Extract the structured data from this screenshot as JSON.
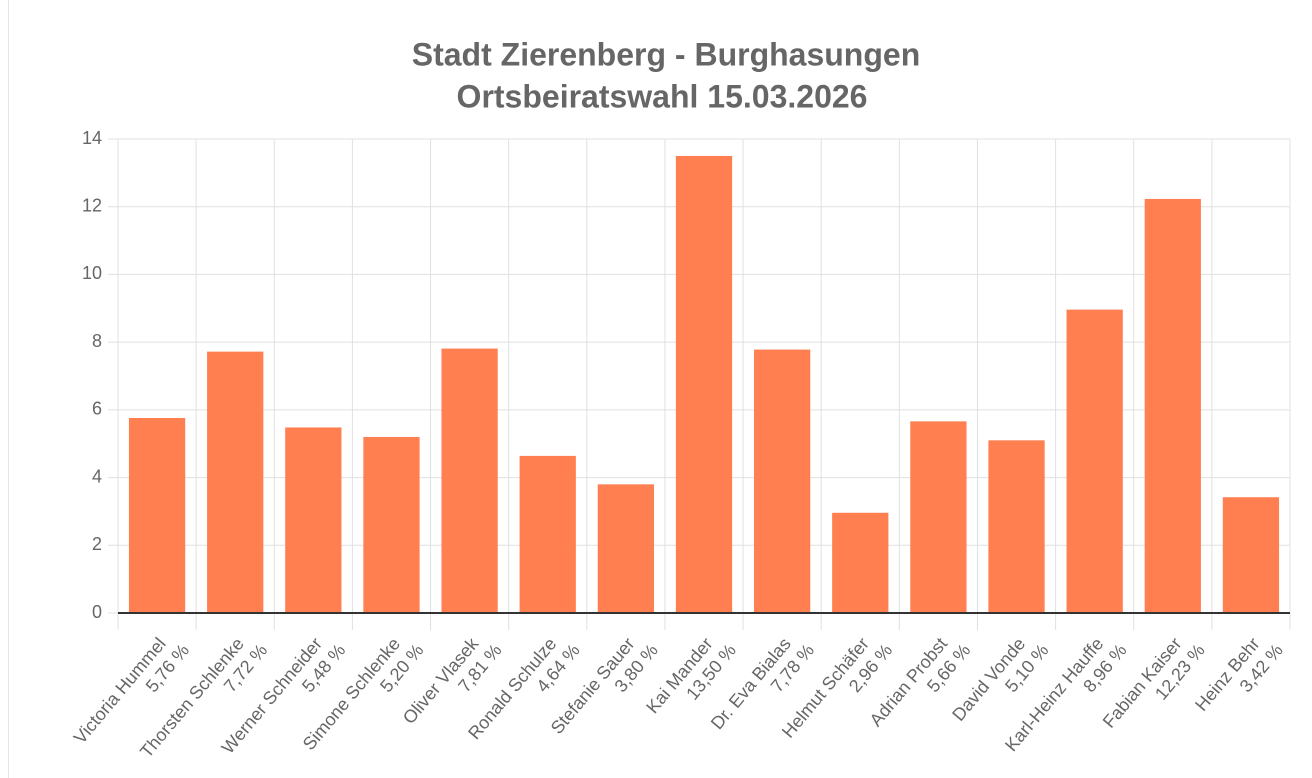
{
  "chart_data": {
    "type": "bar",
    "title": [
      "Stadt Zierenberg - Burghasungen",
      "Ortsbeiratswahl 15.03.2026"
    ],
    "categories": [
      "Victoria Hummel",
      "Thorsten Schlenke",
      "Werner Schneider",
      "Simone Schlenke",
      "Oliver Vlasek",
      "Ronald Schulze",
      "Stefanie Sauer",
      "Kai Mander",
      "Dr. Eva Bialas",
      "Helmut Schäfer",
      "Adrian Probst",
      "David Vonde",
      "Karl-Heinz Hauffe",
      "Fabian Kaiser",
      "Heinz Behr"
    ],
    "values": [
      5.76,
      7.72,
      5.48,
      5.2,
      7.81,
      4.64,
      3.8,
      13.5,
      7.78,
      2.96,
      5.66,
      5.1,
      8.96,
      12.23,
      3.42
    ],
    "value_labels": [
      "5,76 %",
      "7,72 %",
      "5,48 %",
      "5,20 %",
      "7,81 %",
      "4,64 %",
      "3,80 %",
      "13,50 %",
      "7,78 %",
      "2,96 %",
      "5,66 %",
      "5,10 %",
      "8,96 %",
      "12,23 %",
      "3,42 %"
    ],
    "color": "#ff7f50",
    "ylim": [
      0,
      14
    ],
    "yticks": [
      0,
      2,
      4,
      6,
      8,
      10,
      12,
      14
    ],
    "grid": true
  }
}
